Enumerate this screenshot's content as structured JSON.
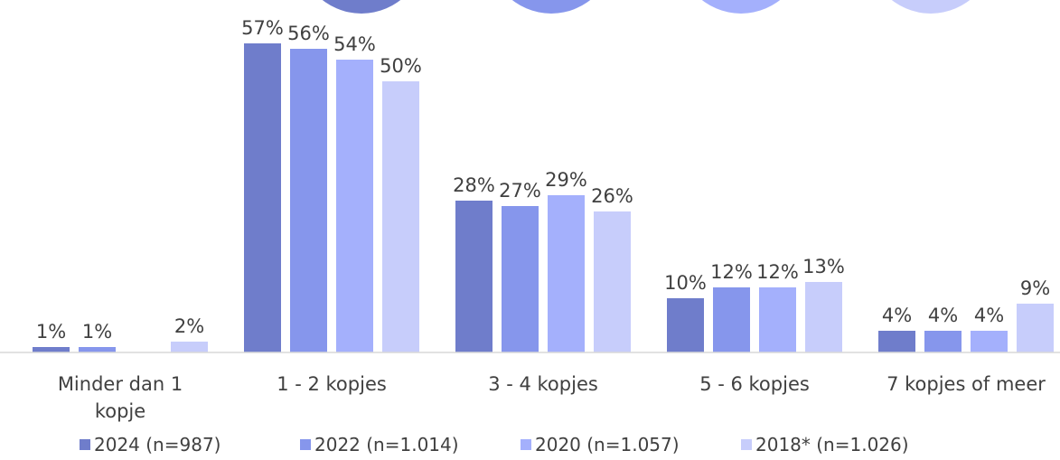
{
  "chart_data": {
    "type": "bar",
    "categories": [
      "Minder dan 1 kopje",
      "1 - 2 kopjes",
      "3 - 4 kopjes",
      "5 - 6 kopjes",
      "7 kopjes of meer"
    ],
    "series": [
      {
        "name": "2024 (n=987)",
        "color": "#6F7DCB",
        "values": [
          1,
          57,
          28,
          10,
          4
        ],
        "labels": [
          "1%",
          "57%",
          "28%",
          "10%",
          "4%"
        ]
      },
      {
        "name": "2022 (n=1.014)",
        "color": "#8696EC",
        "values": [
          1,
          56,
          27,
          12,
          4
        ],
        "labels": [
          "1%",
          "56%",
          "27%",
          "12%",
          "4%"
        ]
      },
      {
        "name": "2020 (n=1.057)",
        "color": "#A4B0FC",
        "values": [
          0,
          54,
          29,
          12,
          4
        ],
        "labels": [
          "",
          "54%",
          "29%",
          "12%",
          "4%"
        ]
      },
      {
        "name": "2018* (n=1.026)",
        "color": "#C7CDFB",
        "values": [
          2,
          50,
          26,
          13,
          9
        ],
        "labels": [
          "2%",
          "50%",
          "26%",
          "13%",
          "9%"
        ]
      }
    ],
    "legend_position": "bottom",
    "grid": false,
    "ylim": [
      0,
      57
    ]
  },
  "decor_colors": [
    "#6F7DCB",
    "#8696EC",
    "#A4B0FC",
    "#C7CDFB"
  ]
}
